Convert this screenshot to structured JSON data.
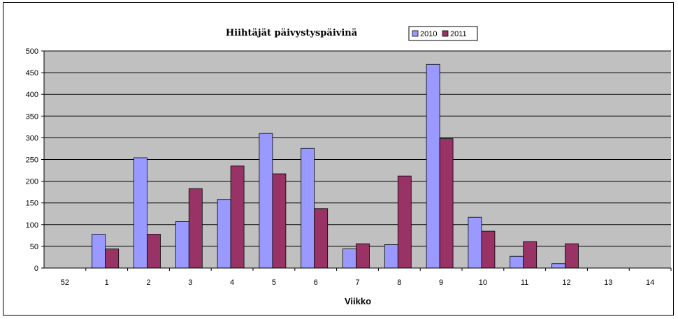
{
  "chart_data": {
    "type": "bar",
    "title": "Hiihtäjät päivystyspäivinä",
    "xlabel": "Viikko",
    "ylabel": "",
    "categories": [
      "52",
      "1",
      "2",
      "3",
      "4",
      "5",
      "6",
      "7",
      "8",
      "9",
      "10",
      "11",
      "12",
      "13",
      "14"
    ],
    "series": [
      {
        "name": "2010",
        "color": "#9999ff",
        "values": [
          0,
          78,
          254,
          107,
          158,
          310,
          276,
          44,
          54,
          469,
          117,
          27,
          10,
          0,
          0
        ]
      },
      {
        "name": "2011",
        "color": "#993366",
        "values": [
          0,
          44,
          78,
          183,
          235,
          217,
          137,
          56,
          212,
          298,
          85,
          61,
          56,
          0,
          0
        ]
      }
    ],
    "yticks": [
      "0",
      "50",
      "100",
      "150",
      "200",
      "250",
      "300",
      "350",
      "400",
      "450",
      "500"
    ],
    "ylim": [
      0,
      500
    ],
    "grid": true,
    "plot_background": "#c0c0c0",
    "legend_position": "top-center"
  }
}
